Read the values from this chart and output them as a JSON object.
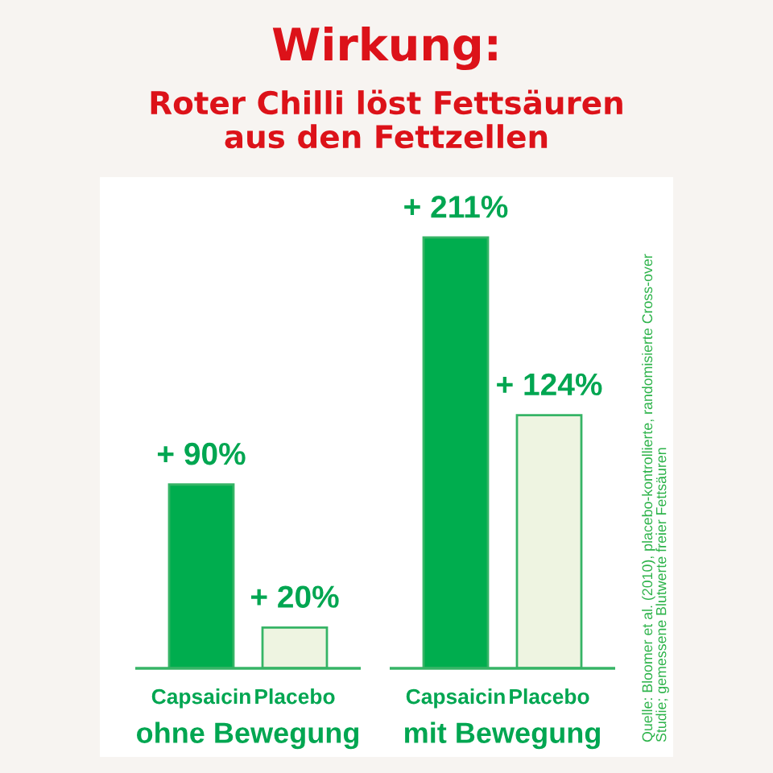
{
  "chart_data": {
    "type": "bar",
    "title": "Wirkung:",
    "subtitle": "Roter Chilli löst Fettsäuren\naus den Fettzellen",
    "categories": [
      "ohne Bewegung",
      "mit Bewegung"
    ],
    "series": [
      {
        "name": "Capsaicin",
        "color": "#00ad4e",
        "values": [
          90,
          211
        ],
        "value_labels": [
          "+ 90%",
          "+ 211%"
        ]
      },
      {
        "name": "Placebo",
        "color": "#eef4e1",
        "values": [
          20,
          124
        ],
        "value_labels": [
          "+ 20%",
          "+ 124%"
        ]
      }
    ],
    "annotations": [
      "Quelle: Bloomer et al. (2010), placebo-kontrollierte, randomisierte Cross-over\nStudie; gemessene Blutwerte freier Fettsäuren"
    ]
  }
}
